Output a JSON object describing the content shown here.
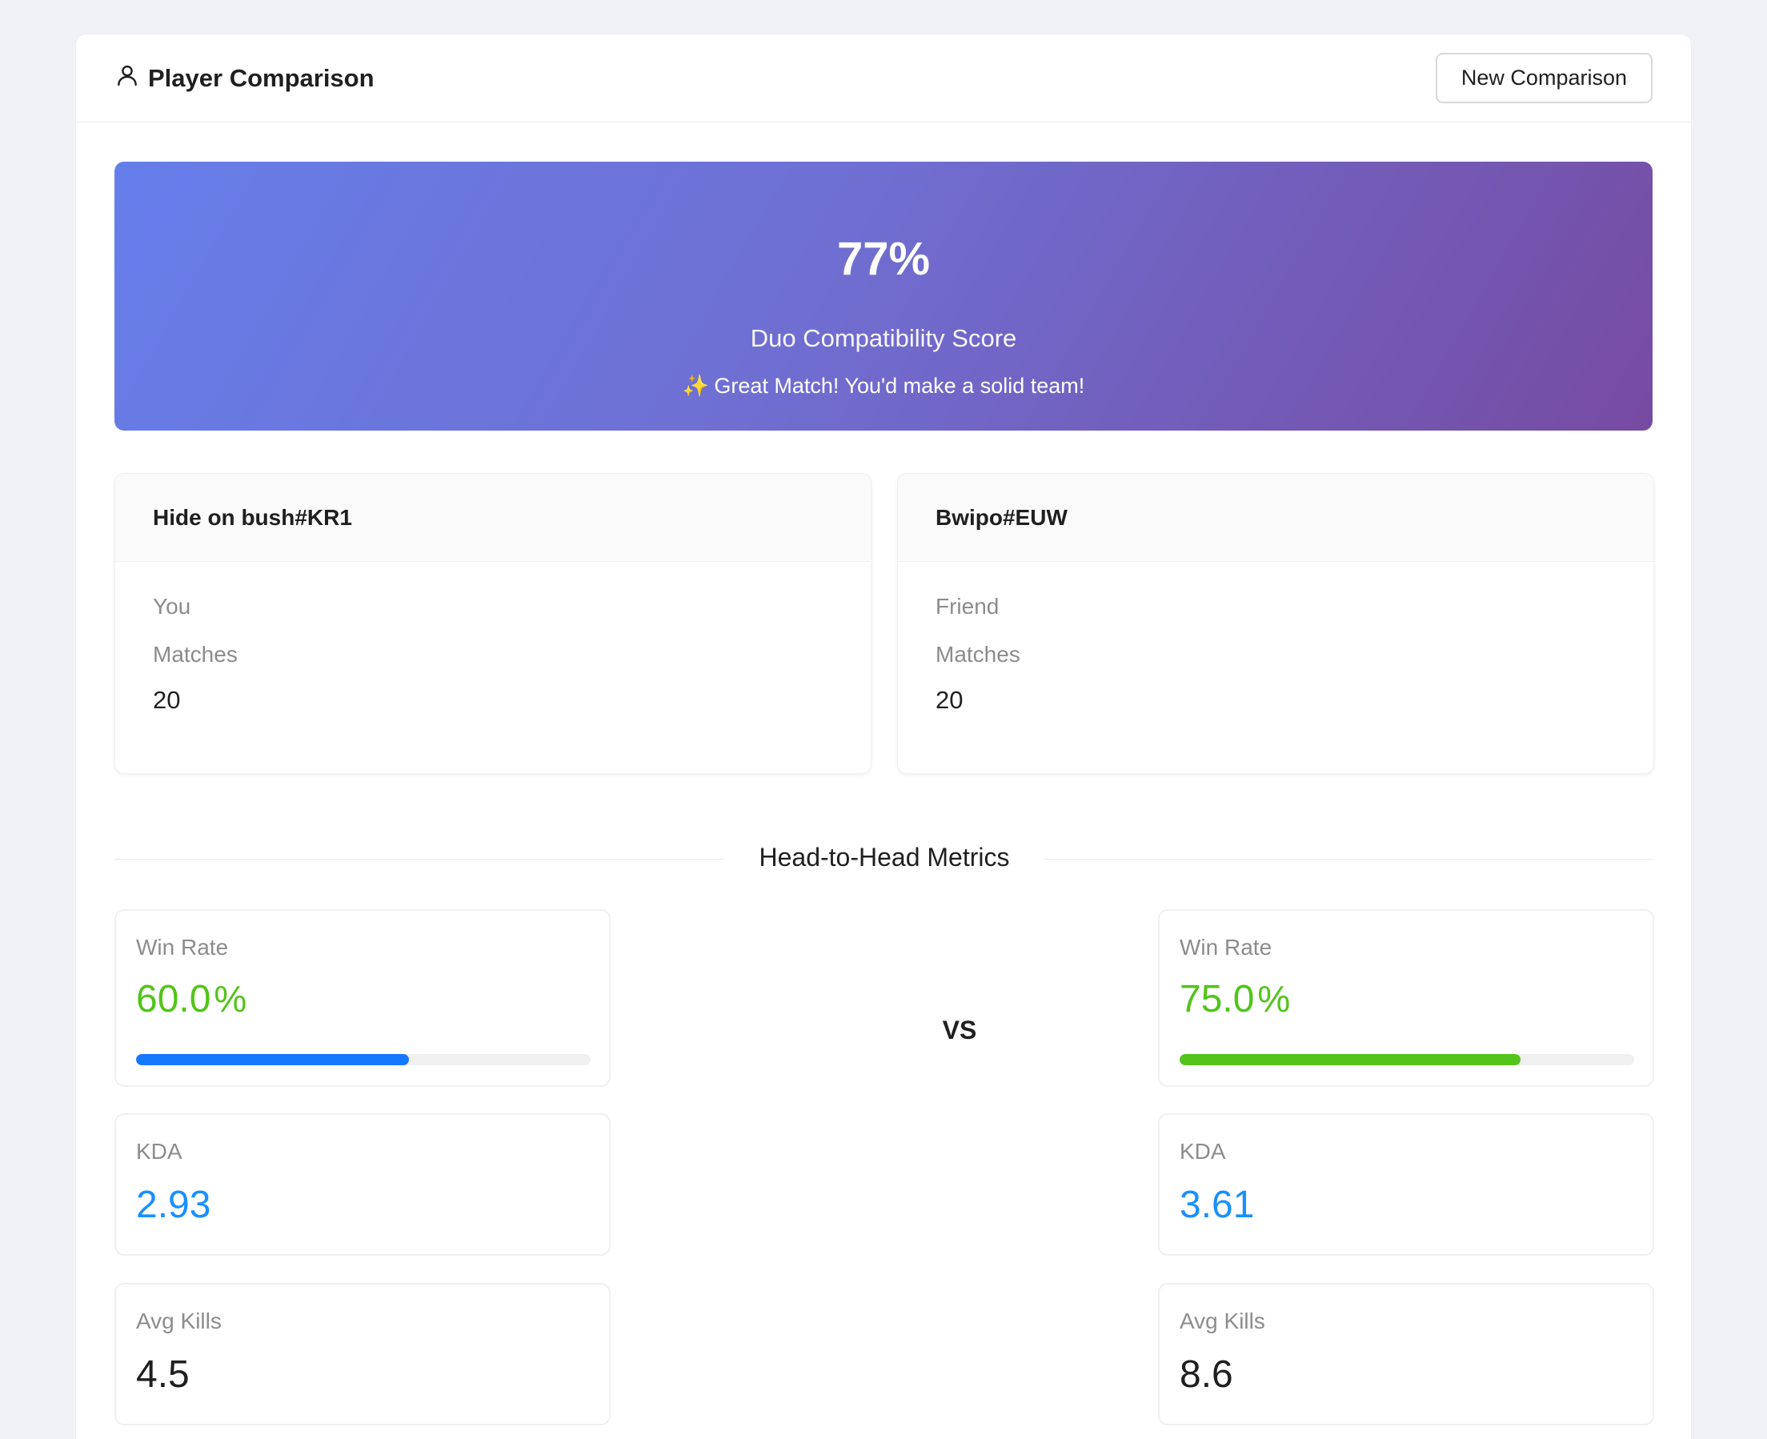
{
  "header": {
    "title": "Player Comparison",
    "new_button": "New Comparison"
  },
  "compatibility": {
    "score": "77%",
    "label": "Duo Compatibility Score",
    "message": "Great Match! You'd make a solid team!"
  },
  "players": [
    {
      "name": "Hide on bush#KR1",
      "role": "You",
      "matches_label": "Matches",
      "matches": "20"
    },
    {
      "name": "Bwipo#EUW",
      "role": "Friend",
      "matches_label": "Matches",
      "matches": "20"
    }
  ],
  "metrics_title": "Head-to-Head Metrics",
  "vs_label": "VS",
  "metrics": {
    "left": {
      "win_rate_label": "Win Rate",
      "win_rate": "60.0",
      "win_rate_unit": "%",
      "win_rate_fraction": 0.6,
      "win_rate_bar_color": "#1677ff",
      "kda_label": "KDA",
      "kda": "2.93",
      "avg_kills_label": "Avg Kills",
      "avg_kills": "4.5"
    },
    "right": {
      "win_rate_label": "Win Rate",
      "win_rate": "75.0",
      "win_rate_unit": "%",
      "win_rate_fraction": 0.75,
      "win_rate_bar_color": "#52c41a",
      "kda_label": "KDA",
      "kda": "3.61",
      "avg_kills_label": "Avg Kills",
      "avg_kills": "8.6"
    }
  },
  "colors": {
    "win_rate_text": "#52c41a",
    "kda_text": "#1890ff",
    "hero_gradient_start": "#667eea",
    "hero_gradient_end": "#764ba2"
  }
}
